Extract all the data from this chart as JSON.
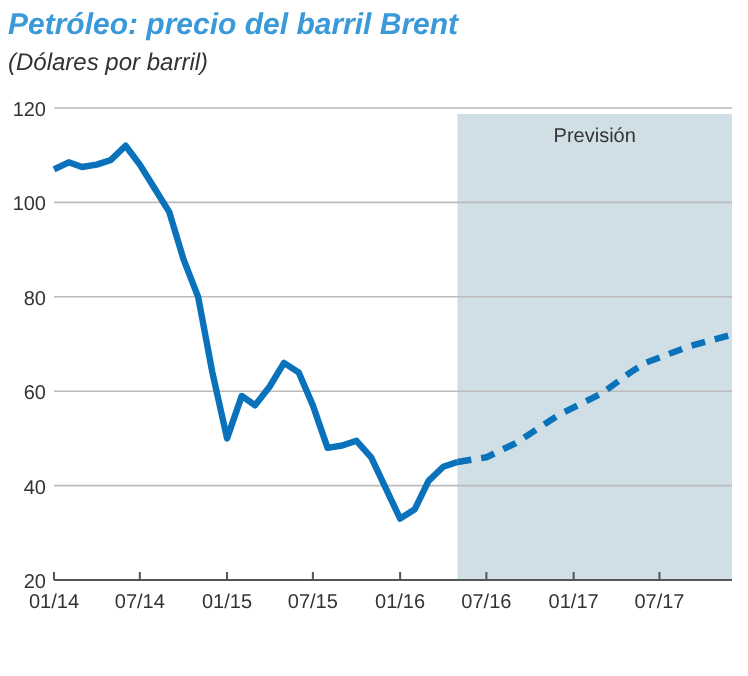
{
  "chart_data": {
    "type": "line",
    "title": "Petróleo: precio del barril Brent",
    "subtitle": "(Dólares por barril)",
    "series": [
      {
        "color": "#0a72bb",
        "line_style": "solid",
        "x": [
          "2014-01",
          "2014-02",
          "2014-03",
          "2014-04",
          "2014-05",
          "2014-06",
          "2014-07",
          "2014-08",
          "2014-09",
          "2014-10",
          "2014-11",
          "2014-12",
          "2015-01",
          "2015-02",
          "2015-03",
          "2015-04",
          "2015-05",
          "2015-06",
          "2015-07",
          "2015-08",
          "2015-09",
          "2015-10",
          "2015-11",
          "2016-01",
          "2016-02",
          "2016-03",
          "2016-04",
          "2016-05"
        ],
        "values": [
          107,
          108.5,
          107.5,
          108,
          109,
          112,
          108,
          103,
          98,
          88,
          80,
          64,
          50,
          59,
          57,
          61,
          66,
          64,
          57,
          48,
          48.5,
          49.5,
          46,
          33,
          35,
          41,
          44,
          45
        ]
      },
      {
        "color": "#0a72bb",
        "line_style": "dashed",
        "x": [
          "2016-05",
          "2016-07",
          "2016-09",
          "2016-12",
          "2017-03",
          "2017-05",
          "2017-06",
          "2017-09",
          "2017-12"
        ],
        "values": [
          45,
          46,
          49,
          55,
          59.5,
          64,
          66,
          69.5,
          72
        ]
      }
    ],
    "xlim": [
      "2014-01",
      "2017-12"
    ],
    "xticks": [
      {
        "value": "2014-01",
        "label": "01/14"
      },
      {
        "value": "2014-07",
        "label": "07/14"
      },
      {
        "value": "2015-01",
        "label": "01/15"
      },
      {
        "value": "2015-07",
        "label": "07/15"
      },
      {
        "value": "2016-01",
        "label": "01/16"
      },
      {
        "value": "2016-07",
        "label": "07/16"
      },
      {
        "value": "2017-01",
        "label": "01/17"
      },
      {
        "value": "2017-07",
        "label": "07/17"
      }
    ],
    "ylim": [
      20,
      120
    ],
    "yticks": [
      20,
      40,
      60,
      80,
      100,
      120
    ],
    "grid": "y",
    "bands": [
      {
        "axis": "x",
        "from": "2016-05",
        "to": "2017-12",
        "label": "Previsión",
        "color": "#d0dfe6"
      }
    ]
  }
}
